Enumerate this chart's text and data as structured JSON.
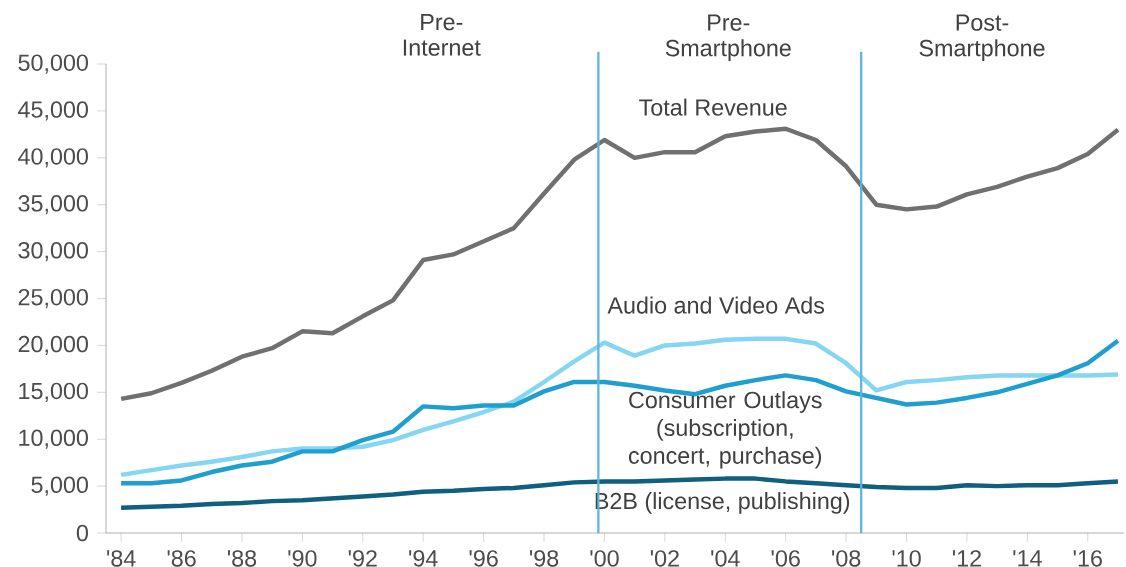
{
  "chart_data": {
    "type": "line",
    "x": [
      1984,
      1985,
      1986,
      1987,
      1988,
      1989,
      1990,
      1991,
      1992,
      1993,
      1994,
      1995,
      1996,
      1997,
      1998,
      1999,
      2000,
      2001,
      2002,
      2003,
      2004,
      2005,
      2006,
      2007,
      2008,
      2009,
      2010,
      2011,
      2012,
      2013,
      2014,
      2015,
      2016,
      2017
    ],
    "series": [
      {
        "name": "Total Revenue",
        "color": "#707070",
        "values": [
          14300,
          14900,
          16000,
          17300,
          18800,
          19700,
          21500,
          21300,
          23100,
          24800,
          29100,
          29700,
          31100,
          32500,
          36200,
          39800,
          41900,
          40000,
          40600,
          40600,
          42300,
          42800,
          43100,
          41900,
          39100,
          35000,
          34500,
          34800,
          36100,
          36900,
          38000,
          38900,
          40400,
          43000
        ]
      },
      {
        "name": "Audio and Video Ads",
        "color": "#85d6f2",
        "values": [
          6200,
          6700,
          7200,
          7600,
          8100,
          8700,
          9000,
          9000,
          9200,
          9900,
          11000,
          11900,
          12900,
          14000,
          16100,
          18300,
          20300,
          18900,
          20000,
          20200,
          20600,
          20700,
          20700,
          20200,
          18100,
          15200,
          16100,
          16300,
          16600,
          16800,
          16800,
          16800,
          16800,
          16900
        ]
      },
      {
        "name": "Consumer Outlays (subscription, concert, purchase)",
        "color": "#1f9fd0",
        "values": [
          5300,
          5300,
          5600,
          6500,
          7200,
          7600,
          8700,
          8700,
          9900,
          10800,
          13500,
          13300,
          13600,
          13600,
          15100,
          16100,
          16100,
          15700,
          15200,
          14800,
          15700,
          16300,
          16800,
          16300,
          15100,
          14400,
          13700,
          13900,
          14400,
          15000,
          15900,
          16800,
          18100,
          20500
        ]
      },
      {
        "name": "B2B (license, publishing)",
        "color": "#0f5f7f",
        "values": [
          2700,
          2800,
          2900,
          3100,
          3200,
          3400,
          3500,
          3700,
          3900,
          4100,
          4400,
          4500,
          4700,
          4800,
          5100,
          5400,
          5500,
          5500,
          5600,
          5700,
          5800,
          5800,
          5500,
          5300,
          5100,
          4900,
          4800,
          4800,
          5100,
          5000,
          5100,
          5100,
          5300,
          5500
        ]
      }
    ],
    "xlim": [
      1983.5,
      2017.2
    ],
    "ylim": [
      0,
      50000
    ],
    "xticks": [
      {
        "value": 1984,
        "label": "'84"
      },
      {
        "value": 1986,
        "label": "'86"
      },
      {
        "value": 1988,
        "label": "'88"
      },
      {
        "value": 1990,
        "label": "'90"
      },
      {
        "value": 1992,
        "label": "'92"
      },
      {
        "value": 1994,
        "label": "'94"
      },
      {
        "value": 1996,
        "label": "'96"
      },
      {
        "value": 1998,
        "label": "'98"
      },
      {
        "value": 2000,
        "label": "'00"
      },
      {
        "value": 2002,
        "label": "'02"
      },
      {
        "value": 2004,
        "label": "'04"
      },
      {
        "value": 2006,
        "label": "'06"
      },
      {
        "value": 2008,
        "label": "'08"
      },
      {
        "value": 2010,
        "label": "'10"
      },
      {
        "value": 2012,
        "label": "'12"
      },
      {
        "value": 2014,
        "label": "'14"
      },
      {
        "value": 2016,
        "label": "'16"
      }
    ],
    "yticks": [
      0,
      {
        "value": 5000,
        "label": "5,000"
      },
      {
        "value": 10000,
        "label": "10,000"
      },
      {
        "value": 15000,
        "label": "15,000"
      },
      {
        "value": 20000,
        "label": "20,000"
      },
      {
        "value": 25000,
        "label": "25,000"
      },
      {
        "value": 30000,
        "label": "30,000"
      },
      {
        "value": 35000,
        "label": "35,000"
      },
      {
        "value": 40000,
        "label": "40,000"
      },
      {
        "value": 45000,
        "label": "45,000"
      },
      {
        "value": 50000,
        "label": "50,000"
      }
    ],
    "ref_lines": [
      {
        "axis": "x",
        "value": 1999.8,
        "color": "#5ab4dc"
      },
      {
        "axis": "x",
        "value": 2008.5,
        "color": "#5ab4dc"
      }
    ],
    "annotations": [
      "Pre-Internet",
      "Pre-Smartphone",
      "Post-Smartphone"
    ]
  }
}
